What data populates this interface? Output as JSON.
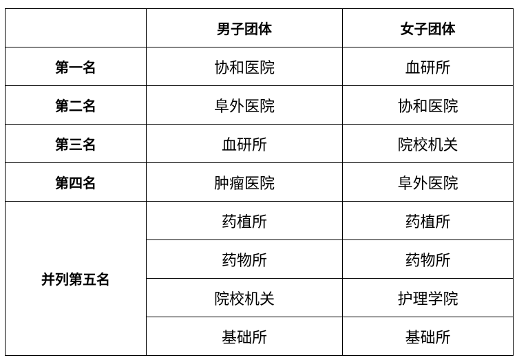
{
  "table": {
    "headers": [
      "",
      "男子团体",
      "女子团体"
    ],
    "rows": [
      {
        "rank": "第一名",
        "men": "协和医院",
        "women": "血研所"
      },
      {
        "rank": "第二名",
        "men": "阜外医院",
        "women": "协和医院"
      },
      {
        "rank": "第三名",
        "men": "血研所",
        "women": "院校机关"
      },
      {
        "rank": "第四名",
        "men": "肿瘤医院",
        "women": "阜外医院"
      }
    ],
    "tied_fifth": {
      "rank": "并列第五名",
      "rows": [
        {
          "men": "药植所",
          "women": "药植所"
        },
        {
          "men": "药物所",
          "women": "药物所"
        },
        {
          "men": "院校机关",
          "women": "护理学院"
        },
        {
          "men": "基础所",
          "women": "基础所"
        }
      ]
    }
  }
}
